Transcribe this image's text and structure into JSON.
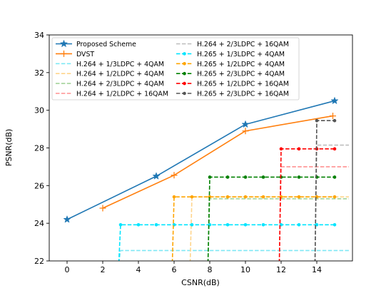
{
  "chart_data": {
    "type": "line",
    "title": "",
    "xlabel": "CSNR(dB)",
    "ylabel": "PSNR(dB)",
    "xlim": [
      -1,
      16
    ],
    "ylim": [
      22,
      34
    ],
    "xticks": [
      0,
      2,
      4,
      6,
      8,
      10,
      12,
      14
    ],
    "yticks": [
      22,
      24,
      26,
      28,
      30,
      32,
      34
    ],
    "grid": false,
    "legend_position": "top-left",
    "series": [
      {
        "name": "Proposed Scheme",
        "color": "#1f77b4",
        "dash": "solid",
        "marker": "star",
        "x": [
          0,
          5,
          10,
          15
        ],
        "y": [
          24.2,
          26.5,
          29.25,
          30.5
        ]
      },
      {
        "name": "DVST",
        "color": "#ff7f0e",
        "dash": "solid",
        "marker": "plus",
        "x": [
          2,
          6,
          10,
          14.9
        ],
        "y": [
          24.8,
          26.55,
          28.9,
          29.7
        ]
      },
      {
        "name": "H.264 + 1/3LDPC + 4QAM",
        "color": "#7fe8f5",
        "dash": "dashed",
        "marker": "none",
        "x": [
          2.9,
          3.0,
          15.8
        ],
        "y": [
          21.9,
          22.55,
          22.55
        ]
      },
      {
        "name": "H.264 + 1/2LDPC + 4QAM",
        "color": "#ffd58c",
        "dash": "dashed",
        "marker": "none",
        "x": [
          6.9,
          7.0,
          15.8
        ],
        "y": [
          21.9,
          25.4,
          25.4
        ]
      },
      {
        "name": "H.264 + 2/3LDPC + 4QAM",
        "color": "#a4d49a",
        "dash": "dashed",
        "marker": "none",
        "x": [
          7.9,
          8.0,
          15.8
        ],
        "y": [
          21.9,
          25.3,
          25.3
        ]
      },
      {
        "name": "H.264 + 1/2LDPC + 16QAM",
        "color": "#ff9090",
        "dash": "dashed",
        "marker": "none",
        "x": [
          11.9,
          12.0,
          15.8
        ],
        "y": [
          21.9,
          27.0,
          27.0
        ]
      },
      {
        "name": "H.264 + 2/3LDPC + 16QAM",
        "color": "#bdbdbd",
        "dash": "dashed",
        "marker": "none",
        "x": [
          13.9,
          14.0,
          15.8
        ],
        "y": [
          21.9,
          28.15,
          28.15
        ]
      },
      {
        "name": "H.265 + 1/3LDPC + 4QAM",
        "color": "#00e5ff",
        "dash": "dashed",
        "marker": "dot",
        "x": [
          2.9,
          3.0,
          4.0,
          5.0,
          6.0,
          7.0,
          8.0,
          9.0,
          10.0,
          11.0,
          12.0,
          13.0,
          14.0,
          15.0
        ],
        "y": [
          21.9,
          23.92,
          23.92,
          23.92,
          23.92,
          23.92,
          23.92,
          23.92,
          23.92,
          23.92,
          23.92,
          23.92,
          23.92,
          23.92
        ]
      },
      {
        "name": "H.265 + 1/2LDPC + 4QAM",
        "color": "#ffa500",
        "dash": "dashed",
        "marker": "dot",
        "x": [
          5.9,
          6.0,
          7.0,
          8.0,
          9.0,
          10.0,
          11.0,
          12.0,
          13.0,
          14.0,
          15.0
        ],
        "y": [
          21.9,
          25.4,
          25.4,
          25.4,
          25.4,
          25.4,
          25.4,
          25.4,
          25.4,
          25.4,
          25.4
        ]
      },
      {
        "name": "H.265 + 2/3LDPC + 4QAM",
        "color": "#008000",
        "dash": "dashed",
        "marker": "dot",
        "x": [
          7.9,
          8.0,
          9.0,
          10.0,
          11.0,
          12.0,
          13.0,
          14.0,
          15.0
        ],
        "y": [
          21.9,
          26.45,
          26.45,
          26.45,
          26.45,
          26.45,
          26.45,
          26.45,
          26.45
        ]
      },
      {
        "name": "H.265 + 1/2LDPC + 16QAM",
        "color": "#ff0000",
        "dash": "dashed",
        "marker": "dot",
        "x": [
          11.9,
          12.0,
          13.0,
          14.0,
          15.0
        ],
        "y": [
          21.9,
          27.95,
          27.95,
          27.95,
          27.95
        ]
      },
      {
        "name": "H.265 + 2/3LDPC + 16QAM",
        "color": "#555555",
        "dash": "dashed",
        "marker": "dot",
        "x": [
          13.9,
          14.0,
          15.0
        ],
        "y": [
          21.9,
          29.45,
          29.45
        ]
      }
    ],
    "legend_columns": [
      [
        "Proposed Scheme",
        "DVST",
        "H.264 + 1/3LDPC + 4QAM",
        "H.264 + 1/2LDPC + 4QAM",
        "H.264 + 2/3LDPC + 4QAM",
        "H.264 + 1/2LDPC + 16QAM"
      ],
      [
        "H.264 + 2/3LDPC + 16QAM",
        "H.265 + 1/3LDPC + 4QAM",
        "H.265 + 1/2LDPC + 4QAM",
        "H.265 + 2/3LDPC + 4QAM",
        "H.265 + 1/2LDPC + 16QAM",
        "H.265 + 2/3LDPC + 16QAM"
      ]
    ]
  }
}
